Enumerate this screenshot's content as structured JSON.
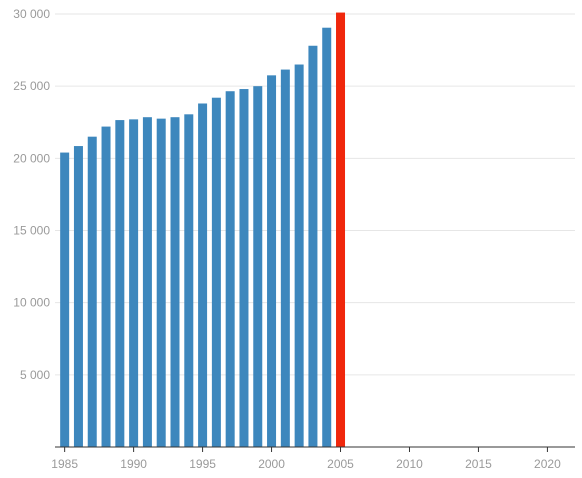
{
  "chart_data": {
    "type": "bar",
    "title": "",
    "xlabel": "",
    "ylabel": "",
    "x": [
      1985,
      1986,
      1987,
      1988,
      1989,
      1990,
      1991,
      1992,
      1993,
      1994,
      1995,
      1996,
      1997,
      1998,
      1999,
      2000,
      2001,
      2002,
      2003,
      2004,
      2005
    ],
    "values": [
      20400,
      20850,
      21500,
      22200,
      22650,
      22700,
      22850,
      22750,
      22850,
      23050,
      23800,
      24200,
      24650,
      24800,
      25000,
      25750,
      26150,
      26500,
      27800,
      29050,
      30100
    ],
    "highlight_index": 20,
    "ylim": [
      0,
      30000
    ],
    "xlim": [
      1984.3,
      2022.0
    ],
    "y_ticks": [
      5000,
      10000,
      15000,
      20000,
      25000,
      30000
    ],
    "y_tick_labels": [
      "5 000",
      "10 000",
      "15 000",
      "20 000",
      "25 000",
      "30 000"
    ],
    "x_ticks": [
      1985,
      1990,
      1995,
      2000,
      2005,
      2010,
      2015,
      2020
    ],
    "x_tick_labels": [
      "1985",
      "1990",
      "1995",
      "2000",
      "2005",
      "2010",
      "2015",
      "2020"
    ],
    "grid": "horizontal",
    "legend": "none",
    "colors": {
      "bar": "#3d87bd",
      "highlight": "#f0270c",
      "grid": "#e6e6e6",
      "axis": "#333333",
      "tick_text": "#9a9a9a"
    }
  }
}
